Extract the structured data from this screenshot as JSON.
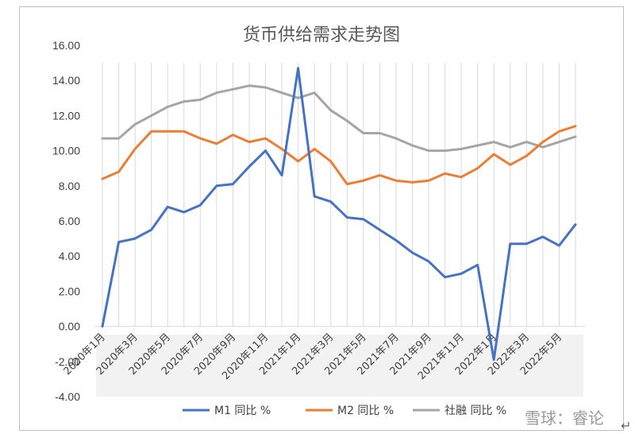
{
  "chart_data": {
    "type": "line",
    "title": "货币供给需求走势图",
    "xlabel": "",
    "ylabel": "",
    "ylim": [
      -4,
      16
    ],
    "yticks": [
      "-4.00",
      "-2.00",
      "0.00",
      "2.00",
      "4.00",
      "6.00",
      "8.00",
      "10.00",
      "12.00",
      "14.00",
      "16.00"
    ],
    "x": [
      "2020年1月",
      "2020年2月",
      "2020年3月",
      "2020年4月",
      "2020年5月",
      "2020年6月",
      "2020年7月",
      "2020年8月",
      "2020年9月",
      "2020年10月",
      "2020年11月",
      "2020年12月",
      "2021年1月",
      "2021年2月",
      "2021年3月",
      "2021年4月",
      "2021年5月",
      "2021年6月",
      "2021年7月",
      "2021年8月",
      "2021年9月",
      "2021年10月",
      "2021年11月",
      "2021年12月",
      "2022年1月",
      "2022年2月",
      "2022年3月",
      "2022年4月",
      "2022年5月",
      "2022年6月"
    ],
    "tick_labels": [
      "2020年1月",
      "2020年3月",
      "2020年5月",
      "2020年7月",
      "2020年9月",
      "2020年11月",
      "2021年1月",
      "2021年3月",
      "2021年5月",
      "2021年7月",
      "2021年9月",
      "2021年11月",
      "2022年1月",
      "2022年3月",
      "2022年5月"
    ],
    "series": [
      {
        "name": "M1 同比 %",
        "color": "#4472c4",
        "values": [
          0.0,
          4.8,
          5.0,
          5.5,
          6.8,
          6.5,
          6.9,
          8.0,
          8.1,
          9.1,
          10.0,
          8.6,
          14.7,
          7.4,
          7.1,
          6.2,
          6.1,
          5.5,
          4.9,
          4.2,
          3.7,
          2.8,
          3.0,
          3.5,
          -1.9,
          4.7,
          4.7,
          5.1,
          4.6,
          5.8
        ]
      },
      {
        "name": "M2 同比 %",
        "color": "#ed7d31",
        "values": [
          8.4,
          8.8,
          10.1,
          11.1,
          11.1,
          11.1,
          10.7,
          10.4,
          10.9,
          10.5,
          10.7,
          10.1,
          9.4,
          10.1,
          9.4,
          8.1,
          8.3,
          8.6,
          8.3,
          8.2,
          8.3,
          8.7,
          8.5,
          9.0,
          9.8,
          9.2,
          9.7,
          10.5,
          11.1,
          11.4
        ]
      },
      {
        "name": "社融 同比 %",
        "color": "#a5a5a5",
        "values": [
          10.7,
          10.7,
          11.5,
          12.0,
          12.5,
          12.8,
          12.9,
          13.3,
          13.5,
          13.7,
          13.6,
          13.3,
          13.0,
          13.3,
          12.3,
          11.7,
          11.0,
          11.0,
          10.7,
          10.3,
          10.0,
          10.0,
          10.1,
          10.3,
          10.5,
          10.2,
          10.5,
          10.2,
          10.5,
          10.8
        ]
      }
    ],
    "grid": "vertical",
    "legend_position": "bottom"
  },
  "watermark": "雪球：睿论",
  "arrow_glyph": "↵"
}
